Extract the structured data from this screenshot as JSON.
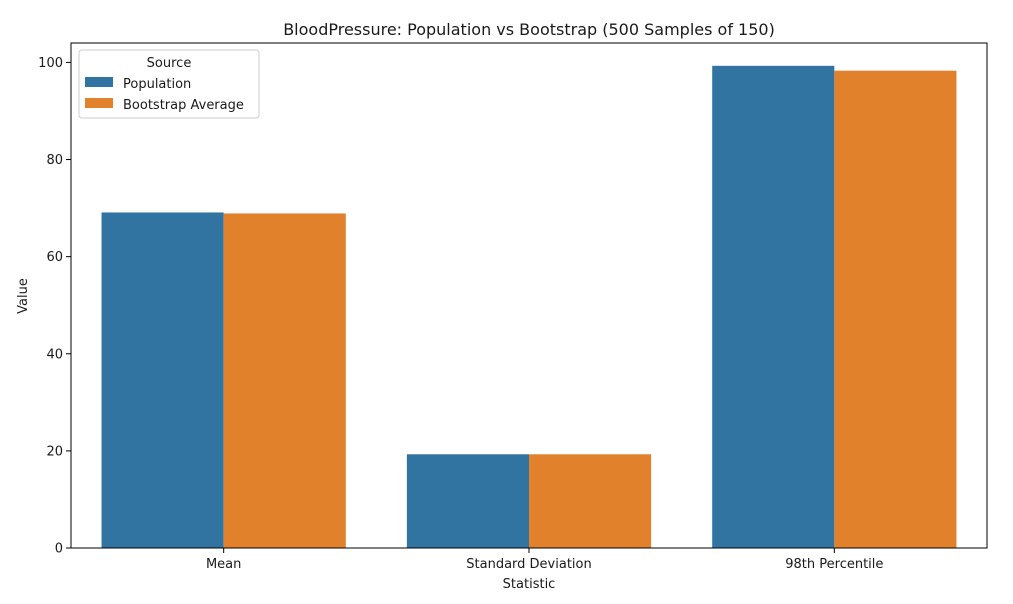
{
  "chart_data": {
    "type": "bar",
    "title": "BloodPressure: Population vs Bootstrap (500 Samples of 150)",
    "xlabel": "Statistic",
    "ylabel": "Value",
    "categories": [
      "Mean",
      "Standard Deviation",
      "98th Percentile"
    ],
    "series": [
      {
        "name": "Population",
        "values": [
          69.1,
          19.3,
          99.3
        ],
        "color": "#3274a1"
      },
      {
        "name": "Bootstrap Average",
        "values": [
          68.9,
          19.3,
          98.3
        ],
        "color": "#e1812c"
      }
    ],
    "ylim": [
      0,
      104
    ],
    "yticks": [
      0,
      20,
      40,
      60,
      80,
      100
    ],
    "grid": false,
    "legend": {
      "title": "Source",
      "placement": "top-left"
    }
  }
}
